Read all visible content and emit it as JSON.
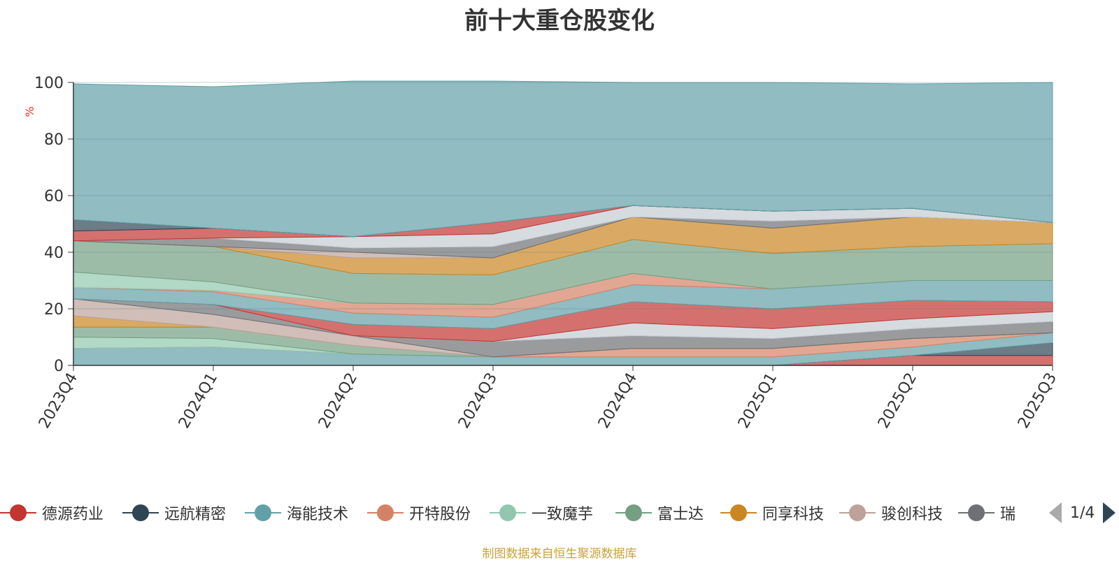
{
  "title": "前十大重仓股变化",
  "source_note": "制图数据来自恒生聚源数据库",
  "pager": {
    "text": "1/4"
  },
  "chart_data": {
    "type": "area",
    "stacked": true,
    "ylabel": "%",
    "ylim": [
      0,
      100
    ],
    "yticks": [
      "0",
      "20",
      "40",
      "60",
      "80",
      "100"
    ],
    "categories": [
      "2023Q4",
      "2024Q1",
      "2024Q2",
      "2024Q3",
      "2024Q4",
      "2025Q1",
      "2025Q2",
      "2025Q3"
    ],
    "legend_position": "bottom",
    "legend_visible": [
      "德源药业",
      "远航精密",
      "海能技术",
      "开特股份",
      "一致魔芋",
      "富士达",
      "同享科技",
      "骏创科技",
      "瑞"
    ],
    "series": [
      {
        "name": "德源药业",
        "color": "#c23531",
        "values": [
          0,
          0,
          0,
          0,
          0,
          0,
          3.5,
          3.5
        ]
      },
      {
        "name": "远航精密",
        "color": "#2f4554",
        "values": [
          0,
          0,
          0,
          0,
          0,
          0,
          0,
          4.5
        ]
      },
      {
        "name": "海能技术",
        "color": "#61a0a8",
        "values": [
          6,
          6.5,
          4,
          3,
          3,
          3,
          3,
          3.5
        ]
      },
      {
        "name": "开特股份",
        "color": "#d48265",
        "values": [
          0,
          0,
          0,
          0,
          3,
          3,
          3,
          0
        ]
      },
      {
        "name": "一致魔芋",
        "color": "#91c7ae",
        "values": [
          4,
          3,
          0,
          0,
          0,
          0,
          0,
          0
        ]
      },
      {
        "name": "富士达",
        "color": "#749f83",
        "values": [
          3.5,
          4,
          3,
          0,
          0,
          0,
          0,
          0
        ]
      },
      {
        "name": "同享科技",
        "color": "#ca8622",
        "values": [
          4,
          0,
          0,
          0,
          0,
          0,
          0,
          0
        ]
      },
      {
        "name": "骏创科技",
        "color": "#bda29a",
        "values": [
          6,
          4.5,
          3.5,
          0,
          0,
          0,
          0,
          0
        ]
      },
      {
        "name": "瑞",
        "color": "#6e7074",
        "values": [
          0,
          3.5,
          0,
          5.5,
          4.5,
          3.5,
          3.5,
          4
        ]
      },
      {
        "name": "",
        "color": "#c4ccd3",
        "values": [
          0,
          0,
          0,
          0,
          4.5,
          3.5,
          3.5,
          3.5
        ]
      },
      {
        "name": "",
        "color": "#c23531",
        "values": [
          0,
          0,
          4,
          4.5,
          7.5,
          7,
          6.5,
          3.5
        ]
      },
      {
        "name": "",
        "color": "#61a0a8",
        "values": [
          4,
          4.5,
          4,
          4,
          6,
          7,
          7,
          7.5
        ]
      },
      {
        "name": "",
        "color": "#d48265",
        "values": [
          0,
          0.5,
          3.5,
          4.5,
          4,
          0,
          0,
          0
        ]
      },
      {
        "name": "",
        "color": "#91c7ae",
        "values": [
          5.5,
          3,
          0,
          0,
          0,
          0,
          0,
          0
        ]
      },
      {
        "name": "",
        "color": "#749f83",
        "values": [
          11,
          12.5,
          10.5,
          10.5,
          12,
          12.5,
          12,
          13
        ]
      },
      {
        "name": "",
        "color": "#ca8622",
        "values": [
          0,
          0,
          5.5,
          6,
          8,
          9,
          10.5,
          7.5
        ]
      },
      {
        "name": "",
        "color": "#bda29a",
        "values": [
          0,
          0,
          2,
          0,
          0,
          0,
          0,
          0
        ]
      },
      {
        "name": "",
        "color": "#6e7074",
        "values": [
          0,
          3,
          1.5,
          4,
          0,
          2.5,
          0,
          0
        ]
      },
      {
        "name": "",
        "color": "#c4ccd3",
        "values": [
          0,
          0,
          4,
          4.5,
          4,
          3.5,
          3,
          0
        ]
      },
      {
        "name": "",
        "color": "#c23531",
        "values": [
          3.5,
          3.5,
          0,
          4,
          0,
          0,
          0,
          0
        ]
      },
      {
        "name": "",
        "color": "#2f4554",
        "values": [
          4,
          0,
          0,
          0,
          0,
          0,
          0,
          0
        ]
      },
      {
        "name": "",
        "color": "#61a0a8",
        "values": [
          48,
          50,
          55,
          50,
          43.5,
          45.5,
          44,
          49.5
        ]
      }
    ]
  }
}
